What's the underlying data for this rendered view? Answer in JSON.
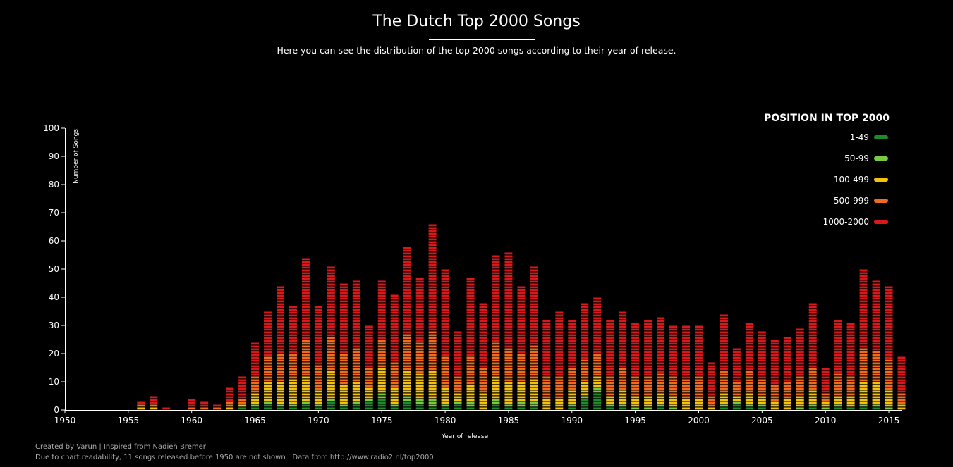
{
  "header": {
    "title": "The Dutch Top 2000 Songs",
    "subtitle": "Here you can see the distribution of the top 2000 songs according to their year of release."
  },
  "footer": {
    "line1": "Created by Varun | Inspired from Nadieh Bremer",
    "line2": "Due to chart readability, 11 songs released before 1950 are not shown | Data from http://www.radio2.nl/top2000"
  },
  "chart_data": {
    "type": "bar",
    "stacked": true,
    "xlabel": "Year of release",
    "ylabel": "Number of Songs",
    "xlim": [
      1950,
      2016
    ],
    "ylim": [
      0,
      100
    ],
    "x_ticks": [
      1950,
      1955,
      1960,
      1965,
      1970,
      1975,
      1980,
      1985,
      1990,
      1995,
      2000,
      2005,
      2010,
      2015
    ],
    "y_ticks": [
      0,
      10,
      20,
      30,
      40,
      50,
      60,
      70,
      80,
      90,
      100
    ],
    "grid": false,
    "legend": {
      "title": "POSITION IN TOP 2000",
      "placement": "top-right",
      "items": [
        {
          "label": "1-49",
          "color": "#1e8a2a"
        },
        {
          "label": "50-99",
          "color": "#7ac943"
        },
        {
          "label": "100-499",
          "color": "#f4c20d"
        },
        {
          "label": "500-999",
          "color": "#f26b1d"
        },
        {
          "label": "1000-2000",
          "color": "#d7191c"
        }
      ]
    },
    "years": [
      1956,
      1957,
      1958,
      1960,
      1961,
      1962,
      1963,
      1964,
      1965,
      1966,
      1967,
      1968,
      1969,
      1970,
      1971,
      1972,
      1973,
      1974,
      1975,
      1976,
      1977,
      1978,
      1979,
      1980,
      1981,
      1982,
      1983,
      1984,
      1985,
      1986,
      1987,
      1988,
      1989,
      1990,
      1991,
      1992,
      1993,
      1994,
      1995,
      1996,
      1997,
      1998,
      1999,
      2000,
      2001,
      2002,
      2003,
      2004,
      2005,
      2006,
      2007,
      2008,
      2009,
      2010,
      2011,
      2012,
      2013,
      2014,
      2015,
      2016
    ],
    "series": [
      {
        "name": "1-49",
        "values": [
          0,
          0,
          0,
          0,
          0,
          0,
          0,
          1,
          1,
          2,
          1,
          1,
          2,
          1,
          3,
          1,
          2,
          3,
          4,
          1,
          3,
          2,
          1,
          1,
          2,
          1,
          0,
          2,
          1,
          1,
          1,
          0,
          0,
          1,
          4,
          6,
          1,
          1,
          0,
          0,
          1,
          0,
          0,
          0,
          0,
          1,
          2,
          1,
          1,
          0,
          0,
          0,
          1,
          0,
          1,
          1,
          1,
          1,
          0,
          0
        ]
      },
      {
        "name": "50-99",
        "values": [
          0,
          0,
          0,
          0,
          0,
          0,
          0,
          0,
          1,
          1,
          1,
          1,
          1,
          1,
          1,
          1,
          1,
          1,
          2,
          1,
          2,
          2,
          3,
          1,
          1,
          2,
          0,
          2,
          1,
          2,
          2,
          0,
          0,
          1,
          1,
          2,
          1,
          1,
          1,
          1,
          1,
          1,
          0,
          0,
          0,
          1,
          1,
          1,
          1,
          0,
          0,
          1,
          1,
          1,
          1,
          0,
          1,
          1,
          1,
          0
        ]
      },
      {
        "name": "100-499",
        "values": [
          1,
          1,
          0,
          0,
          0,
          0,
          1,
          1,
          4,
          7,
          8,
          9,
          9,
          5,
          10,
          7,
          7,
          4,
          9,
          6,
          9,
          9,
          10,
          6,
          3,
          6,
          6,
          8,
          8,
          7,
          8,
          4,
          4,
          5,
          5,
          4,
          3,
          5,
          4,
          4,
          4,
          4,
          4,
          4,
          1,
          4,
          2,
          4,
          3,
          3,
          4,
          4,
          5,
          2,
          3,
          4,
          8,
          8,
          6,
          2
        ]
      },
      {
        "name": "500-999",
        "values": [
          1,
          1,
          0,
          1,
          1,
          1,
          2,
          2,
          6,
          9,
          10,
          9,
          13,
          9,
          12,
          11,
          12,
          7,
          10,
          9,
          13,
          11,
          14,
          11,
          6,
          10,
          9,
          12,
          12,
          10,
          12,
          8,
          8,
          8,
          8,
          8,
          7,
          8,
          7,
          7,
          7,
          7,
          7,
          8,
          4,
          8,
          5,
          8,
          6,
          6,
          6,
          7,
          8,
          3,
          8,
          7,
          12,
          11,
          11,
          4
        ]
      },
      {
        "name": "1000-2000",
        "values": [
          1,
          3,
          1,
          3,
          2,
          1,
          5,
          8,
          12,
          16,
          24,
          17,
          29,
          21,
          25,
          25,
          24,
          15,
          21,
          24,
          31,
          23,
          38,
          31,
          16,
          28,
          23,
          31,
          34,
          24,
          28,
          20,
          23,
          17,
          20,
          20,
          20,
          20,
          19,
          20,
          20,
          18,
          19,
          18,
          12,
          20,
          12,
          17,
          17,
          16,
          16,
          17,
          23,
          9,
          19,
          19,
          28,
          25,
          26,
          13
        ]
      }
    ]
  }
}
